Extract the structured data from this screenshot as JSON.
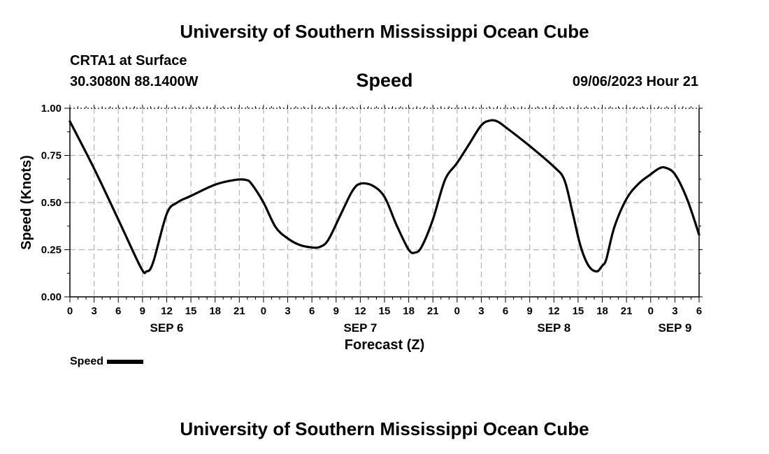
{
  "page": {
    "title_top": "University of Southern Mississippi Ocean Cube",
    "title_bottom": "University of Southern Mississippi Ocean Cube",
    "station": "CRTA1 at Surface",
    "coordinates": "30.3080N  88.1400W",
    "date_time": "09/06/2023 Hour 21"
  },
  "chart_data": {
    "type": "line",
    "title": "Speed",
    "xlabel": "Forecast (Z)",
    "ylabel": "Speed (Knots)",
    "xlim": [
      0,
      78
    ],
    "ylim": [
      0,
      1
    ],
    "x_unit": "hours since SEP 6 00Z",
    "y_ticks": [
      0,
      0.25,
      0.5,
      0.75,
      1.0
    ],
    "y_tick_labels": [
      "0.00",
      "0.25",
      "0.50",
      "0.75",
      "1.00"
    ],
    "x_ticks": [
      0,
      3,
      6,
      9,
      12,
      15,
      18,
      21,
      24,
      27,
      30,
      33,
      36,
      39,
      42,
      45,
      48,
      51,
      54,
      57,
      60,
      63,
      66,
      69,
      72,
      75,
      78
    ],
    "x_tick_labels": [
      "0",
      "3",
      "6",
      "9",
      "12",
      "15",
      "18",
      "21",
      "0",
      "3",
      "6",
      "9",
      "12",
      "15",
      "18",
      "21",
      "0",
      "3",
      "6",
      "9",
      "12",
      "15",
      "18",
      "21",
      "0",
      "3",
      "6"
    ],
    "day_labels": [
      {
        "x": 12,
        "label": "SEP 6"
      },
      {
        "x": 36,
        "label": "SEP 7"
      },
      {
        "x": 60,
        "label": "SEP 8"
      },
      {
        "x": 75,
        "label": "SEP 9"
      }
    ],
    "grid": true,
    "legend": "bottom-left",
    "series": [
      {
        "name": "Speed",
        "color": "#000000",
        "x": [
          0,
          3,
          6,
          8.8,
          9.5,
          10.3,
          12,
          13.3,
          15,
          18,
          20.5,
          21.8,
          22.5,
          24,
          25.5,
          27,
          28.5,
          30,
          31,
          32,
          33.5,
          35,
          36,
          37.5,
          39,
          40.5,
          42,
          42.8,
          43.6,
          45,
          46.5,
          48,
          49.5,
          51,
          52.1,
          53,
          54,
          57,
          60,
          61.3,
          62.3,
          63.3,
          64.3,
          65.3,
          66,
          66.5,
          67.5,
          69,
          70.5,
          72,
          73,
          73.8,
          75,
          76.5,
          78
        ],
        "y": [
          0.93,
          0.68,
          0.41,
          0.155,
          0.135,
          0.18,
          0.44,
          0.5,
          0.535,
          0.595,
          0.62,
          0.62,
          0.6,
          0.5,
          0.37,
          0.31,
          0.275,
          0.262,
          0.265,
          0.3,
          0.43,
          0.56,
          0.6,
          0.59,
          0.53,
          0.38,
          0.25,
          0.235,
          0.265,
          0.41,
          0.62,
          0.71,
          0.81,
          0.91,
          0.935,
          0.93,
          0.9,
          0.8,
          0.69,
          0.62,
          0.45,
          0.27,
          0.165,
          0.135,
          0.165,
          0.2,
          0.37,
          0.52,
          0.6,
          0.65,
          0.68,
          0.685,
          0.65,
          0.52,
          0.33
        ]
      }
    ]
  }
}
